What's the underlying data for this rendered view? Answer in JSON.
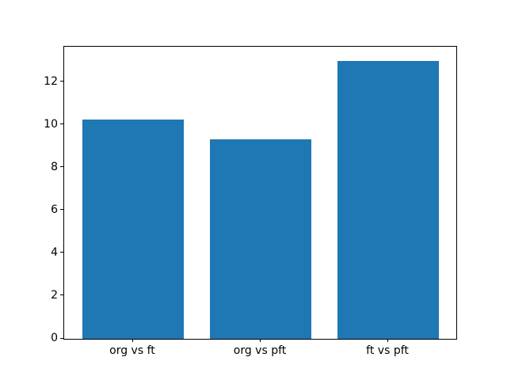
{
  "figure": {
    "background": "#ffffff",
    "spine_color": "#000000",
    "text_color": "#000000"
  },
  "chart_data": {
    "type": "bar",
    "title": "",
    "xlabel": "",
    "ylabel": "",
    "categories": [
      "org vs ft",
      "org vs pft",
      "ft vs pft"
    ],
    "values": [
      10.25,
      9.33,
      13.0
    ],
    "bar_color": "#1f77b4",
    "ylim": [
      0,
      13.65
    ],
    "yticks": [
      0,
      2,
      4,
      6,
      8,
      10,
      12
    ],
    "grid": false,
    "legend": "none"
  }
}
